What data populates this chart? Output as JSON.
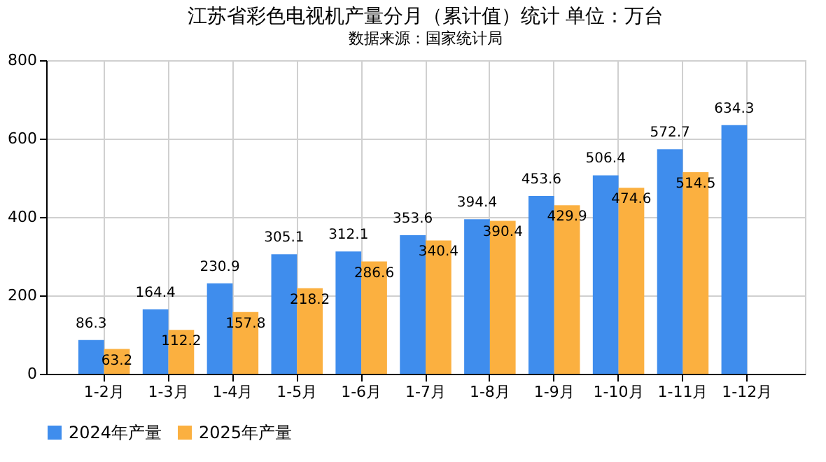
{
  "chart_data": {
    "type": "bar",
    "title": "江苏省彩色电视机产量分月（累计值）统计  单位：万台",
    "categories": [
      "1-2月",
      "1-3月",
      "1-4月",
      "1-5月",
      "1-6月",
      "1-7月",
      "1-8月",
      "1-9月",
      "1-10月",
      "1-11月",
      "1-12月"
    ],
    "series": [
      {
        "name": "2024年产量",
        "color": "#3f8ded",
        "values": [
          86.3,
          164.4,
          230.9,
          305.1,
          312.1,
          353.6,
          394.4,
          453.6,
          506.4,
          572.7,
          634.3
        ]
      },
      {
        "name": "2025年产量",
        "color": "#fbb040",
        "values": [
          63.2,
          112.2,
          157.8,
          218.2,
          286.6,
          340.4,
          390.4,
          429.9,
          474.6,
          514.5,
          null
        ]
      }
    ],
    "ylim": [
      0,
      800
    ],
    "yticks": [
      0,
      200,
      400,
      600,
      800
    ],
    "grid": true,
    "legend": "bottom",
    "data_labels": true,
    "annotations": [
      "数据来源：国家统计局"
    ]
  }
}
